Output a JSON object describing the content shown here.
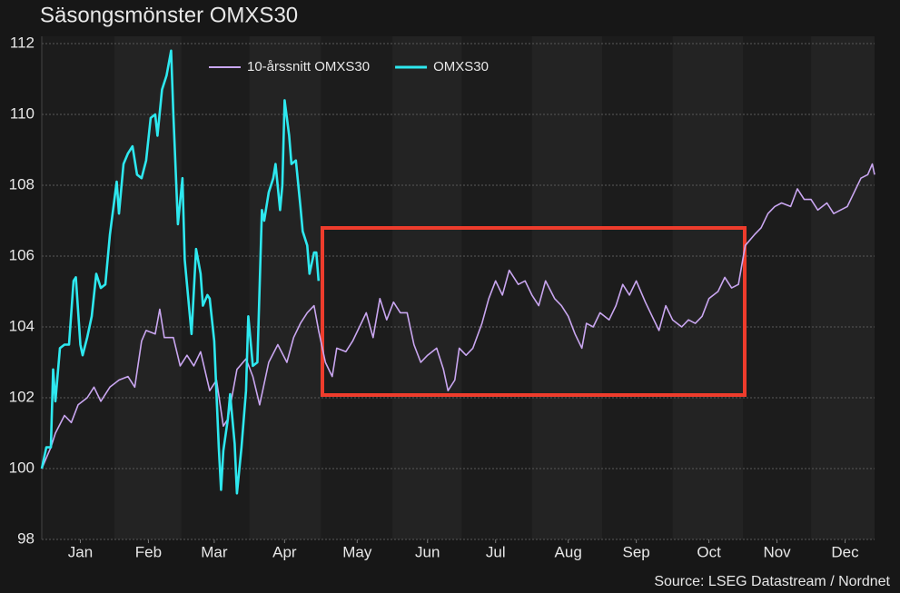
{
  "chart_data": {
    "type": "line",
    "title": "Säsongsmönster OMXS30",
    "source": "Source: LSEG Datastream / Nordnet",
    "xlim": [
      0,
      367
    ],
    "xticks": [
      {
        "value": 17,
        "label": "Jan"
      },
      {
        "value": 47,
        "label": "Feb"
      },
      {
        "value": 76,
        "label": "Mar"
      },
      {
        "value": 107,
        "label": "Apr"
      },
      {
        "value": 139,
        "label": "May"
      },
      {
        "value": 170,
        "label": "Jun"
      },
      {
        "value": 200,
        "label": "Jul"
      },
      {
        "value": 232,
        "label": "Aug"
      },
      {
        "value": 262,
        "label": "Sep"
      },
      {
        "value": 294,
        "label": "Oct"
      },
      {
        "value": 324,
        "label": "Nov"
      },
      {
        "value": 354,
        "label": "Dec"
      }
    ],
    "ylim": [
      98,
      112
    ],
    "yticks": [
      98,
      100,
      102,
      104,
      106,
      108,
      110,
      112
    ],
    "grid": true,
    "legend": "top",
    "series": [
      {
        "name": "10-årssnitt OMXS30",
        "color": "#c9a6f0",
        "x": [
          0,
          4,
          6,
          10,
          13,
          16,
          20,
          23,
          26,
          30,
          34,
          38,
          41,
          44,
          46,
          50,
          52,
          54,
          58,
          61,
          64,
          67,
          70,
          74,
          77,
          80,
          82,
          86,
          90,
          93,
          96,
          100,
          104,
          108,
          111,
          114,
          117,
          120,
          122,
          125,
          128,
          130,
          134,
          137,
          140,
          143,
          146,
          149,
          152,
          155,
          158,
          161,
          164,
          167,
          170,
          174,
          177,
          179,
          182,
          184,
          187,
          190,
          194,
          197,
          200,
          203,
          206,
          210,
          213,
          216,
          219,
          222,
          226,
          229,
          232,
          235,
          238,
          240,
          243,
          246,
          250,
          253,
          256,
          259,
          262,
          266,
          269,
          272,
          275,
          278,
          282,
          285,
          288,
          291,
          294,
          298,
          301,
          304,
          307,
          310,
          314,
          317,
          320,
          323,
          326,
          330,
          333,
          336,
          339,
          342,
          346,
          349,
          352,
          355,
          358,
          361,
          364,
          366,
          367
        ],
        "values": [
          100.0,
          100.6,
          101.0,
          101.5,
          101.3,
          101.8,
          102.0,
          102.3,
          101.9,
          102.3,
          102.5,
          102.6,
          102.3,
          103.6,
          103.9,
          103.8,
          104.5,
          103.7,
          103.7,
          102.9,
          103.2,
          102.9,
          103.3,
          102.2,
          102.5,
          101.2,
          101.4,
          102.8,
          103.1,
          102.6,
          101.8,
          103.0,
          103.5,
          103.0,
          103.7,
          104.1,
          104.4,
          104.6,
          103.9,
          103.0,
          102.6,
          103.4,
          103.3,
          103.6,
          104.0,
          104.4,
          103.7,
          104.8,
          104.2,
          104.7,
          104.4,
          104.4,
          103.5,
          103.0,
          103.2,
          103.4,
          102.8,
          102.2,
          102.5,
          103.4,
          103.2,
          103.4,
          104.1,
          104.8,
          105.3,
          104.9,
          105.6,
          105.2,
          105.3,
          104.9,
          104.6,
          105.3,
          104.8,
          104.6,
          104.3,
          103.8,
          103.4,
          104.1,
          104.0,
          104.4,
          104.2,
          104.6,
          105.2,
          104.9,
          105.3,
          104.7,
          104.3,
          103.9,
          104.6,
          104.2,
          104.0,
          104.2,
          104.1,
          104.3,
          104.8,
          105.0,
          105.4,
          105.1,
          105.2,
          106.3,
          106.6,
          106.8,
          107.2,
          107.4,
          107.5,
          107.4,
          107.9,
          107.6,
          107.6,
          107.3,
          107.5,
          107.2,
          107.3,
          107.4,
          107.8,
          108.2,
          108.3,
          108.6,
          108.3
        ]
      },
      {
        "name": "OMXS30",
        "color": "#2ee8ef",
        "x": [
          0,
          2,
          4,
          5,
          6,
          8,
          10,
          12,
          14,
          15,
          17,
          18,
          20,
          22,
          24,
          26,
          28,
          30,
          33,
          34,
          36,
          38,
          40,
          42,
          44,
          46,
          48,
          50,
          51,
          53,
          55,
          57,
          58,
          60,
          62,
          63,
          65,
          66,
          68,
          70,
          71,
          73,
          74,
          76,
          78,
          79,
          80,
          82,
          83,
          85,
          86,
          88,
          90,
          91,
          93,
          95,
          97,
          98,
          100,
          102,
          103,
          105,
          106,
          107,
          109,
          110,
          112,
          114,
          115,
          117,
          118,
          120,
          121,
          122
        ],
        "values": [
          100.0,
          100.6,
          100.6,
          102.8,
          101.9,
          103.4,
          103.5,
          103.5,
          105.3,
          105.4,
          103.5,
          103.2,
          103.7,
          104.3,
          105.5,
          105.1,
          105.2,
          106.6,
          108.1,
          107.2,
          108.6,
          108.9,
          109.1,
          108.3,
          108.2,
          108.7,
          109.9,
          110.0,
          109.4,
          110.7,
          111.1,
          111.8,
          110.0,
          106.9,
          108.2,
          105.9,
          104.5,
          103.8,
          106.2,
          105.5,
          104.6,
          104.9,
          104.8,
          103.6,
          100.6,
          99.4,
          100.5,
          101.4,
          102.1,
          100.7,
          99.3,
          100.6,
          102.2,
          104.3,
          102.9,
          103.0,
          107.3,
          107.0,
          107.8,
          108.2,
          108.6,
          107.3,
          108.0,
          110.4,
          109.4,
          108.6,
          108.7,
          107.4,
          106.7,
          106.3,
          105.5,
          106.1,
          106.1,
          105.3
        ]
      }
    ]
  }
}
